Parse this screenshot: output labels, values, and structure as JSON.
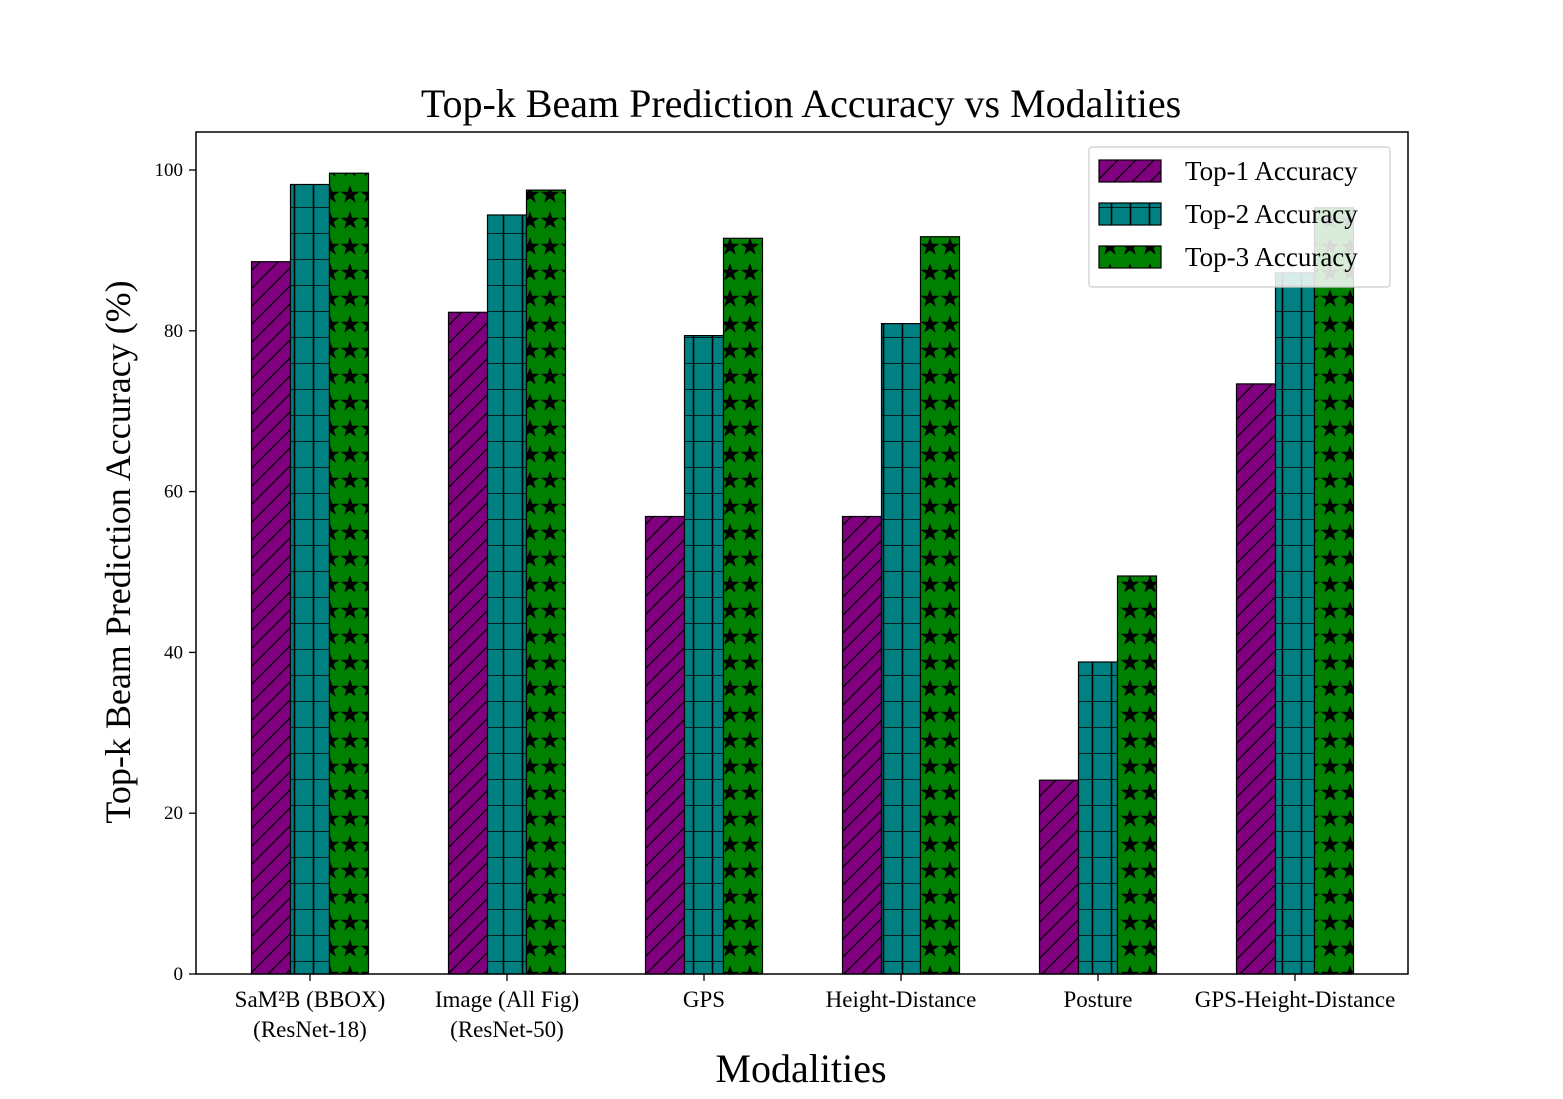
{
  "chart_data": {
    "type": "bar",
    "title": "Top-k Beam Prediction Accuracy vs Modalities",
    "xlabel": "Modalities",
    "ylabel": "Top-k Beam Prediction Accuracy (%)",
    "ylim": [
      0,
      105
    ],
    "yticks": [
      0,
      20,
      40,
      60,
      80,
      100
    ],
    "grid": false,
    "legend_position": "top-right",
    "categories": [
      [
        "SaM²B (BBOX)",
        "(ResNet-18)"
      ],
      [
        "Image (All Fig)",
        "(ResNet-50)"
      ],
      [
        "GPS"
      ],
      [
        "Height-Distance"
      ],
      [
        "Posture"
      ],
      [
        "GPS-Height-Distance"
      ]
    ],
    "series": [
      {
        "name": "Top-1 Accuracy",
        "color": "#800080",
        "pattern": "diagonal-hatch",
        "values": [
          88.6,
          82.3,
          56.9,
          56.9,
          24.1,
          73.4
        ]
      },
      {
        "name": "Top-2 Accuracy",
        "color": "#008080",
        "pattern": "grid-hatch",
        "values": [
          98.2,
          94.4,
          79.4,
          80.9,
          38.8,
          87.2
        ]
      },
      {
        "name": "Top-3 Accuracy",
        "color": "#008000",
        "pattern": "star-hatch",
        "values": [
          99.6,
          97.5,
          91.5,
          91.7,
          49.5,
          95.3
        ]
      }
    ]
  }
}
